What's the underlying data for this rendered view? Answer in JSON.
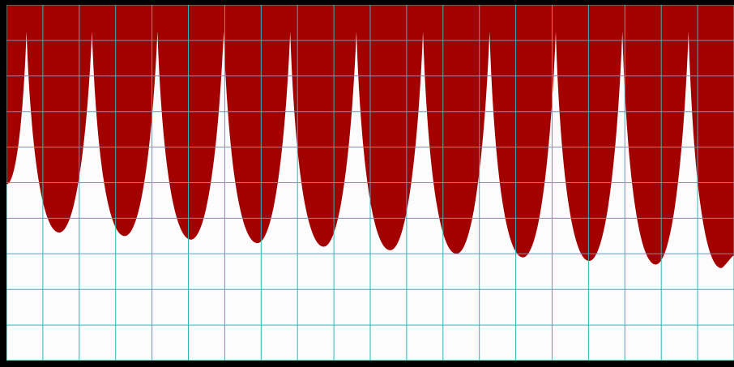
{
  "chart_data": {
    "type": "area",
    "title": "",
    "xlabel": "",
    "ylabel": "",
    "grid": true,
    "colors": {
      "fill": "#a30000",
      "background": "#fcfcfc",
      "grid": "#2fb6b6",
      "frame": "#000000"
    },
    "x_range": [
      0,
      20
    ],
    "y_range": [
      0,
      10
    ],
    "grid_x_divisions": 20,
    "grid_y_divisions": 10,
    "cusps": [
      {
        "x": 0.55,
        "y": 9.25
      },
      {
        "x": 2.35,
        "y": 9.25
      },
      {
        "x": 4.15,
        "y": 9.25
      },
      {
        "x": 5.97,
        "y": 9.25
      },
      {
        "x": 7.8,
        "y": 9.25
      },
      {
        "x": 9.62,
        "y": 9.25
      },
      {
        "x": 11.45,
        "y": 9.25
      },
      {
        "x": 13.28,
        "y": 9.25
      },
      {
        "x": 15.1,
        "y": 9.25
      },
      {
        "x": 16.93,
        "y": 9.25
      },
      {
        "x": 18.75,
        "y": 9.25
      }
    ],
    "minima": [
      {
        "x": 1.45,
        "y": 3.6
      },
      {
        "x": 3.25,
        "y": 3.5
      },
      {
        "x": 5.07,
        "y": 3.4
      },
      {
        "x": 6.9,
        "y": 3.3
      },
      {
        "x": 8.72,
        "y": 3.2
      },
      {
        "x": 10.55,
        "y": 3.1
      },
      {
        "x": 12.37,
        "y": 3.0
      },
      {
        "x": 14.2,
        "y": 2.9
      },
      {
        "x": 16.02,
        "y": 2.8
      },
      {
        "x": 17.85,
        "y": 2.7
      },
      {
        "x": 19.65,
        "y": 2.6
      }
    ],
    "start": {
      "x": 0.0,
      "y": 4.95
    }
  }
}
